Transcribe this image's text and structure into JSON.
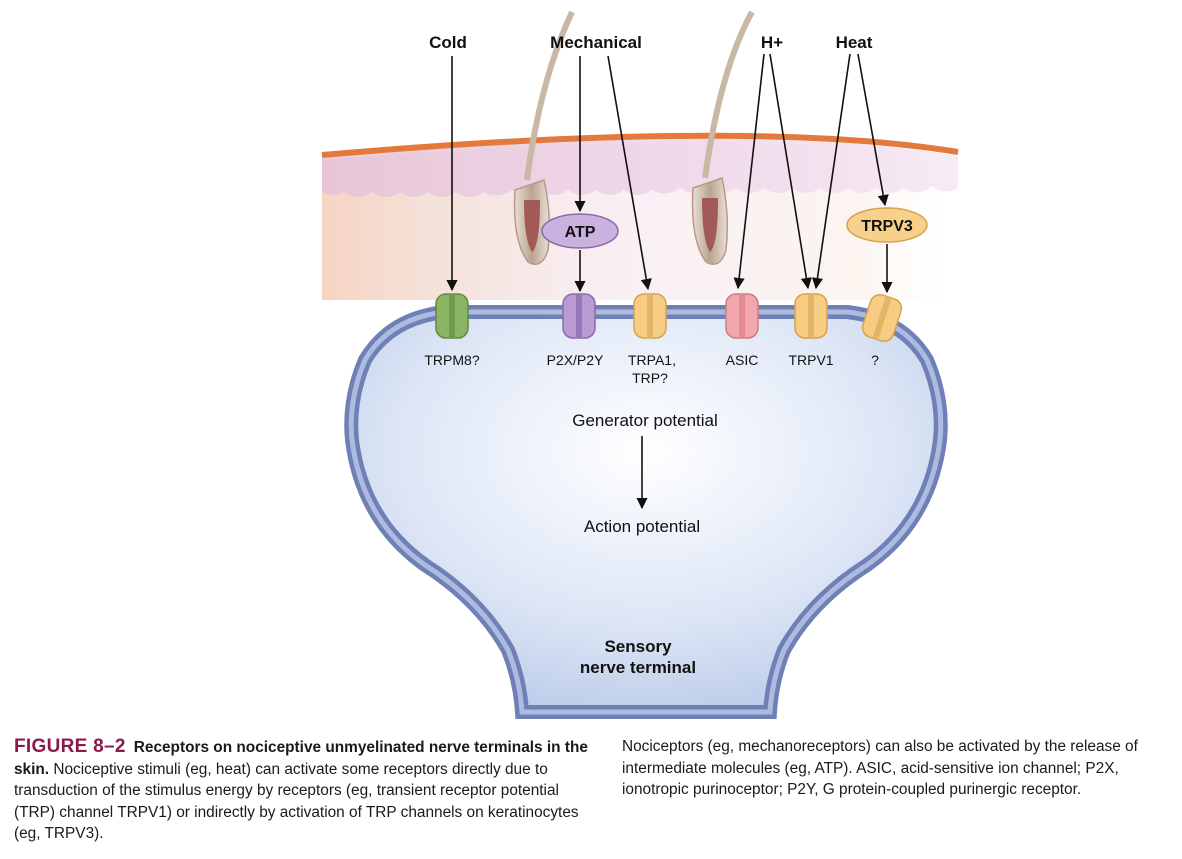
{
  "stimuli": {
    "cold": "Cold",
    "mechanical": "Mechanical",
    "h_plus": "H+",
    "heat": "Heat"
  },
  "molecules": {
    "atp": "ATP",
    "trpv3": "TRPV3"
  },
  "receptors": {
    "trpm8": "TRPM8?",
    "p2x_p2y": "P2X/P2Y",
    "trpa1_line1": "TRPA1,",
    "trpa1_line2": "TRP?",
    "asic": "ASIC",
    "trpv1": "TRPV1",
    "unknown": "?"
  },
  "process": {
    "generator": "Generator potential",
    "action": "Action potential"
  },
  "terminal": {
    "line1": "Sensory",
    "line2": "nerve terminal"
  },
  "caption": {
    "figure_number": "FIGURE 8–2",
    "title": "Receptors on nociceptive unmyelinated nerve terminals in the skin.",
    "left_text": "Nociceptive stimuli (eg, heat) can activate some receptors directly due to transduction of the stimulus energy by receptors (eg, transient receptor potential (TRP) channel TRPV1) or indirectly by activation of TRP channels on keratinocytes (eg, TRPV3).",
    "right_text": "Nociceptors (eg, mechanoreceptors) can also be activated by the release of intermediate molecules (eg, ATP). ASIC, acid-sensitive ion channel; P2X, ionotropic purinoceptor; P2Y, G protein-coupled purinergic receptor."
  },
  "colors": {
    "skin_surface": "#e37a3c",
    "epidermis": "#ecd3e6",
    "dermis": "#f5dccb",
    "membrane_outer": "#7788bb",
    "membrane_inner": "#b8c4e4",
    "terminal_fill": "#c9d6ef",
    "trpm8": "#8ab564",
    "p2x": "#b99ad3",
    "trpa1": "#f7cd84",
    "asic": "#f2a6ad",
    "trpv1": "#f7cd84",
    "atp_oval": "#c9b1e0",
    "trpv3_oval": "#f7d08c",
    "figure_number": "#8b1a4a"
  }
}
